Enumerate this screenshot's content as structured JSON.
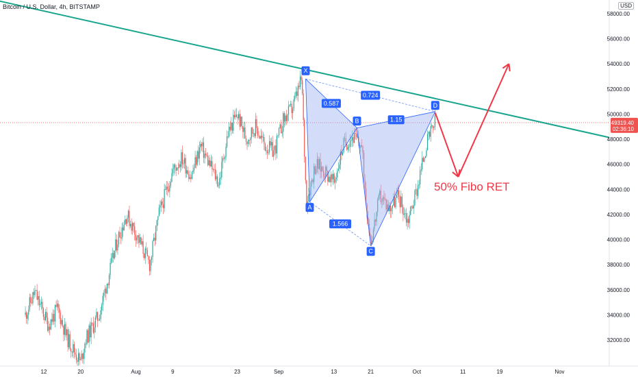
{
  "header": {
    "symbol_line": "Bitcoin / U.S. Dollar, 4h, BITSTAMP",
    "currency": "USD"
  },
  "price_scale": {
    "ticks": [
      "58000.00",
      "56000.00",
      "54000.00",
      "52000.00",
      "50000.00",
      "48000.00",
      "46000.00",
      "44000.00",
      "42000.00",
      "40000.00",
      "38000.00",
      "36000.00",
      "34000.00",
      "32000.00"
    ],
    "last_price": "49319.40",
    "countdown": "02:36:10"
  },
  "colors": {
    "up": "#26a69a",
    "down": "#ef5350",
    "trendline": "#17a58e",
    "pattern_fill": "#9db2f0",
    "pattern_stroke": "#2962ff",
    "label_bg": "#2962ff",
    "projection": "#f23645",
    "last_price_bg": "#ef5350"
  },
  "chart_data": {
    "type": "candlestick",
    "title": "Bitcoin / U.S. Dollar, 4h, BITSTAMP",
    "timeframe": "4h",
    "currency": "USD",
    "x_ticks": [
      "12",
      "20",
      "Aug",
      "9",
      "23",
      "Sep",
      "13",
      "21",
      "Oct",
      "11",
      "19",
      "Nov"
    ],
    "ylim": [
      30000,
      59000
    ],
    "grid": false,
    "series_path": [
      {
        "date": "Jul 08",
        "price": 34000
      },
      {
        "date": "Jul 10",
        "price": 35800
      },
      {
        "date": "Jul 13",
        "price": 33200
      },
      {
        "date": "Jul 15",
        "price": 34500
      },
      {
        "date": "Jul 17",
        "price": 32200
      },
      {
        "date": "Jul 20",
        "price": 30200
      },
      {
        "date": "Jul 21",
        "price": 32000
      },
      {
        "date": "Jul 24",
        "price": 34000
      },
      {
        "date": "Jul 26",
        "price": 37000
      },
      {
        "date": "Jul 28",
        "price": 40000
      },
      {
        "date": "Jul 30",
        "price": 42000
      },
      {
        "date": "Aug 01",
        "price": 40500
      },
      {
        "date": "Aug 04",
        "price": 38000
      },
      {
        "date": "Aug 06",
        "price": 42000
      },
      {
        "date": "Aug 09",
        "price": 45500
      },
      {
        "date": "Aug 11",
        "price": 46500
      },
      {
        "date": "Aug 13",
        "price": 45000
      },
      {
        "date": "Aug 15",
        "price": 47500
      },
      {
        "date": "Aug 17",
        "price": 46000
      },
      {
        "date": "Aug 19",
        "price": 44500
      },
      {
        "date": "Aug 21",
        "price": 48500
      },
      {
        "date": "Aug 23",
        "price": 50000
      },
      {
        "date": "Aug 25",
        "price": 48000
      },
      {
        "date": "Aug 27",
        "price": 49000
      },
      {
        "date": "Aug 29",
        "price": 47500
      },
      {
        "date": "Aug 31",
        "price": 47000
      },
      {
        "date": "Sep 02",
        "price": 49500
      },
      {
        "date": "Sep 04",
        "price": 50500
      },
      {
        "date": "Sep 06",
        "price": 52800
      },
      {
        "date": "Sep 07",
        "price": 43000
      },
      {
        "date": "Sep 09",
        "price": 46000
      },
      {
        "date": "Sep 11",
        "price": 45500
      },
      {
        "date": "Sep 13",
        "price": 44500
      },
      {
        "date": "Sep 15",
        "price": 47500
      },
      {
        "date": "Sep 17",
        "price": 48200
      },
      {
        "date": "Sep 19",
        "price": 47500
      },
      {
        "date": "Sep 20",
        "price": 43000
      },
      {
        "date": "Sep 21",
        "price": 39800
      },
      {
        "date": "Sep 23",
        "price": 43500
      },
      {
        "date": "Sep 25",
        "price": 42500
      },
      {
        "date": "Sep 27",
        "price": 43500
      },
      {
        "date": "Sep 29",
        "price": 41500
      },
      {
        "date": "Oct 01",
        "price": 44000
      },
      {
        "date": "Oct 03",
        "price": 47500
      },
      {
        "date": "Oct 05",
        "price": 49400
      }
    ],
    "trendline": [
      {
        "date": "Jun 30",
        "price": 59200
      },
      {
        "date": "Nov 22",
        "price": 47300
      }
    ],
    "harmonic_pattern": {
      "points": [
        {
          "label": "X",
          "date": "Sep 07",
          "price": 52800
        },
        {
          "label": "A",
          "date": "Sep 07",
          "price": 43000
        },
        {
          "label": "B",
          "date": "Sep 18",
          "price": 48900
        },
        {
          "label": "C",
          "date": "Sep 21",
          "price": 39500
        },
        {
          "label": "D",
          "date": "Oct 05",
          "price": 50200
        }
      ],
      "ratios": [
        "0.587",
        "0.724",
        "1.15",
        "1.566"
      ]
    },
    "projection": {
      "points": [
        {
          "date": "Oct 05",
          "price": 50100
        },
        {
          "date": "Oct 10",
          "price": 45000
        },
        {
          "date": "Oct 21",
          "price": 54000
        }
      ],
      "label": "50% Fibo RET"
    },
    "last_price": 49319.4
  }
}
